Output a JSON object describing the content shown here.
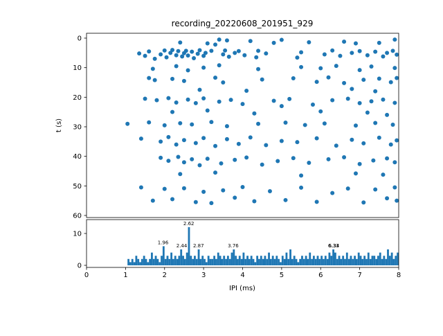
{
  "figure": {
    "title": "recording_20220608_201951_929",
    "background": "#ffffff",
    "accent": "#1f77b4"
  },
  "chart_data": [
    {
      "type": "scatter",
      "title": "recording_20220608_201951_929",
      "xlabel": "",
      "ylabel": "t (s)",
      "xlim": [
        0,
        8
      ],
      "ylim": [
        60,
        0
      ],
      "y_inverted": true,
      "xticks": [
        0,
        1,
        2,
        3,
        4,
        5,
        6,
        7,
        8
      ],
      "yticks": [
        0,
        10,
        20,
        30,
        40,
        50,
        60
      ],
      "marker_color": "#1f77b4",
      "grid": false,
      "legend": null,
      "points": [
        [
          3.4,
          0.5
        ],
        [
          3.6,
          0.8
        ],
        [
          4.2,
          1.0
        ],
        [
          5.0,
          0.6
        ],
        [
          6.6,
          1.2
        ],
        [
          7.9,
          0.5
        ],
        [
          2.4,
          1.5
        ],
        [
          3.1,
          1.8
        ],
        [
          3.3,
          2.2
        ],
        [
          4.8,
          1.6
        ],
        [
          5.7,
          1.4
        ],
        [
          6.9,
          1.8
        ],
        [
          7.5,
          1.6
        ],
        [
          1.35,
          5.2
        ],
        [
          1.5,
          6.0
        ],
        [
          1.6,
          4.5
        ],
        [
          1.75,
          7.0
        ],
        [
          1.9,
          5.5
        ],
        [
          2.0,
          4.2
        ],
        [
          2.05,
          6.5
        ],
        [
          2.15,
          5.0
        ],
        [
          2.2,
          4.0
        ],
        [
          2.3,
          5.8
        ],
        [
          2.35,
          4.4
        ],
        [
          2.45,
          6.2
        ],
        [
          2.5,
          5.1
        ],
        [
          2.55,
          4.3
        ],
        [
          2.6,
          5.9
        ],
        [
          2.7,
          4.6
        ],
        [
          2.75,
          6.8
        ],
        [
          2.85,
          5.3
        ],
        [
          2.9,
          4.1
        ],
        [
          3.0,
          6.0
        ],
        [
          3.05,
          5.0
        ],
        [
          3.2,
          4.3
        ],
        [
          3.5,
          5.5
        ],
        [
          3.55,
          4.2
        ],
        [
          3.65,
          6.3
        ],
        [
          3.8,
          5.0
        ],
        [
          3.9,
          4.4
        ],
        [
          4.05,
          5.8
        ],
        [
          4.35,
          6.5
        ],
        [
          4.4,
          4.3
        ],
        [
          4.6,
          5.2
        ],
        [
          5.4,
          6.6
        ],
        [
          5.5,
          4.8
        ],
        [
          6.1,
          5.5
        ],
        [
          6.3,
          4.2
        ],
        [
          6.5,
          6.0
        ],
        [
          6.8,
          5.0
        ],
        [
          7.0,
          4.4
        ],
        [
          7.2,
          5.8
        ],
        [
          7.4,
          4.6
        ],
        [
          7.6,
          6.2
        ],
        [
          7.7,
          5.0
        ],
        [
          7.85,
          4.3
        ],
        [
          7.95,
          5.6
        ],
        [
          1.7,
          10.4
        ],
        [
          2.3,
          9.5
        ],
        [
          2.6,
          10.9
        ],
        [
          3.0,
          10.0
        ],
        [
          3.4,
          9.2
        ],
        [
          4.4,
          10.5
        ],
        [
          5.5,
          9.8
        ],
        [
          6.0,
          10.2
        ],
        [
          6.4,
          9.4
        ],
        [
          7.0,
          10.8
        ],
        [
          7.3,
          9.6
        ],
        [
          7.9,
          10.1
        ],
        [
          1.6,
          13.5
        ],
        [
          1.75,
          14.2
        ],
        [
          2.2,
          13.8
        ],
        [
          2.5,
          14.5
        ],
        [
          3.3,
          13.4
        ],
        [
          3.5,
          15.0
        ],
        [
          4.5,
          14.0
        ],
        [
          5.3,
          13.6
        ],
        [
          5.9,
          14.8
        ],
        [
          6.2,
          13.3
        ],
        [
          6.6,
          15.2
        ],
        [
          7.1,
          14.1
        ],
        [
          7.5,
          13.7
        ],
        [
          7.8,
          14.9
        ],
        [
          7.95,
          13.5
        ],
        [
          2.9,
          17.5
        ],
        [
          4.1,
          17.8
        ],
        [
          6.8,
          17.2
        ],
        [
          7.4,
          18.0
        ],
        [
          1.5,
          20.5
        ],
        [
          1.8,
          21.0
        ],
        [
          2.1,
          20.3
        ],
        [
          2.3,
          21.8
        ],
        [
          2.6,
          20.8
        ],
        [
          2.8,
          22.0
        ],
        [
          3.0,
          20.4
        ],
        [
          3.4,
          21.5
        ],
        [
          3.7,
          20.9
        ],
        [
          4.0,
          22.3
        ],
        [
          4.8,
          21.2
        ],
        [
          5.2,
          20.6
        ],
        [
          5.8,
          22.5
        ],
        [
          6.3,
          21.0
        ],
        [
          6.7,
          20.5
        ],
        [
          7.0,
          22.0
        ],
        [
          7.3,
          21.4
        ],
        [
          7.6,
          20.8
        ],
        [
          7.9,
          21.9
        ],
        [
          5.0,
          23.0
        ],
        [
          2.2,
          25.0
        ],
        [
          3.1,
          24.5
        ],
        [
          4.3,
          25.5
        ],
        [
          6.0,
          24.8
        ],
        [
          7.2,
          25.2
        ],
        [
          7.7,
          26.0
        ],
        [
          1.05,
          29.0
        ],
        [
          1.6,
          28.5
        ],
        [
          2.0,
          29.5
        ],
        [
          2.4,
          28.8
        ],
        [
          2.7,
          29.2
        ],
        [
          3.2,
          28.4
        ],
        [
          3.6,
          29.8
        ],
        [
          4.4,
          29.0
        ],
        [
          5.1,
          28.6
        ],
        [
          5.6,
          29.4
        ],
        [
          6.1,
          28.9
        ],
        [
          6.9,
          29.6
        ],
        [
          7.4,
          28.7
        ],
        [
          7.85,
          29.3
        ],
        [
          1.4,
          34.0
        ],
        [
          1.9,
          35.0
        ],
        [
          2.1,
          33.5
        ],
        [
          2.3,
          36.0
        ],
        [
          2.5,
          34.5
        ],
        [
          2.8,
          35.5
        ],
        [
          3.0,
          33.8
        ],
        [
          3.3,
          36.5
        ],
        [
          3.6,
          34.2
        ],
        [
          3.9,
          35.8
        ],
        [
          4.2,
          33.6
        ],
        [
          4.6,
          36.2
        ],
        [
          5.0,
          34.8
        ],
        [
          5.4,
          35.2
        ],
        [
          5.9,
          33.9
        ],
        [
          6.4,
          36.4
        ],
        [
          6.8,
          34.4
        ],
        [
          7.1,
          35.6
        ],
        [
          7.5,
          33.7
        ],
        [
          7.8,
          36.0
        ],
        [
          7.95,
          34.6
        ],
        [
          1.9,
          40.5
        ],
        [
          2.1,
          41.5
        ],
        [
          2.35,
          40.2
        ],
        [
          2.5,
          42.0
        ],
        [
          2.7,
          41.0
        ],
        [
          2.9,
          43.0
        ],
        [
          3.1,
          40.8
        ],
        [
          3.45,
          42.4
        ],
        [
          3.8,
          41.2
        ],
        [
          4.1,
          40.4
        ],
        [
          4.5,
          42.8
        ],
        [
          4.9,
          41.6
        ],
        [
          5.3,
          40.6
        ],
        [
          5.7,
          42.2
        ],
        [
          6.2,
          41.0
        ],
        [
          6.6,
          40.3
        ],
        [
          7.0,
          42.6
        ],
        [
          7.35,
          41.4
        ],
        [
          7.7,
          40.7
        ],
        [
          7.9,
          42.0
        ],
        [
          2.4,
          46.0
        ],
        [
          3.3,
          45.5
        ],
        [
          5.5,
          46.5
        ],
        [
          6.9,
          45.8
        ],
        [
          7.6,
          46.2
        ],
        [
          1.4,
          50.5
        ],
        [
          1.7,
          55.0
        ],
        [
          2.0,
          51.0
        ],
        [
          2.2,
          54.5
        ],
        [
          2.5,
          50.8
        ],
        [
          2.8,
          55.5
        ],
        [
          3.0,
          52.0
        ],
        [
          3.2,
          55.8
        ],
        [
          3.5,
          51.5
        ],
        [
          3.8,
          54.0
        ],
        [
          4.0,
          50.4
        ],
        [
          4.3,
          55.2
        ],
        [
          4.7,
          51.8
        ],
        [
          5.1,
          54.8
        ],
        [
          5.5,
          50.6
        ],
        [
          5.9,
          55.4
        ],
        [
          6.3,
          52.4
        ],
        [
          6.7,
          50.9
        ],
        [
          7.1,
          55.6
        ],
        [
          7.4,
          51.2
        ],
        [
          7.7,
          54.2
        ],
        [
          7.9,
          50.5
        ],
        [
          7.95,
          55.0
        ]
      ]
    },
    {
      "type": "bar",
      "title": "",
      "xlabel": "IPI (ms)",
      "ylabel": "",
      "xlim": [
        0,
        8
      ],
      "ylim": [
        0,
        14
      ],
      "xticks": [
        0,
        1,
        2,
        3,
        4,
        5,
        6,
        7,
        8
      ],
      "yticks": [
        0,
        10
      ],
      "bar_color": "#1f77b4",
      "bin_start": 0,
      "bin_width": 0.05,
      "values": [
        0,
        0,
        0,
        0,
        0,
        0,
        0,
        0,
        0,
        0,
        0,
        0,
        0,
        0,
        0,
        0,
        0,
        0,
        0,
        0,
        0,
        2,
        1,
        2,
        1,
        3,
        2,
        1,
        2,
        3,
        2,
        1,
        2,
        4,
        2,
        3,
        2,
        1,
        3,
        6,
        2,
        3,
        2,
        4,
        2,
        3,
        2,
        3,
        5,
        3,
        2,
        4,
        12,
        3,
        2,
        3,
        2,
        5,
        2,
        3,
        2,
        1,
        3,
        2,
        2,
        3,
        2,
        4,
        3,
        2,
        3,
        2,
        3,
        2,
        4,
        5,
        3,
        2,
        3,
        2,
        4,
        2,
        3,
        2,
        3,
        2,
        1,
        3,
        2,
        3,
        2,
        3,
        2,
        4,
        2,
        3,
        2,
        3,
        2,
        1,
        3,
        2,
        4,
        2,
        5,
        2,
        3,
        2,
        1,
        2,
        3,
        2,
        3,
        2,
        4,
        2,
        3,
        2,
        3,
        2,
        3,
        2,
        3,
        2,
        4,
        3,
        5,
        4,
        2,
        3,
        2,
        3,
        2,
        4,
        2,
        3,
        2,
        3,
        2,
        4,
        3,
        2,
        3,
        2,
        4,
        2,
        3,
        3,
        2,
        3,
        4,
        2,
        3,
        2,
        5,
        3,
        4,
        2,
        3,
        4
      ],
      "annotations": [
        {
          "x": 1.96,
          "y": 6,
          "label": "1.96"
        },
        {
          "x": 2.62,
          "y": 12,
          "label": "2.62"
        },
        {
          "x": 2.44,
          "y": 5,
          "label": "2.44"
        },
        {
          "x": 2.87,
          "y": 5,
          "label": "2.87"
        },
        {
          "x": 3.76,
          "y": 5,
          "label": "3.76"
        },
        {
          "x": 6.33,
          "y": 5,
          "label": "6.33"
        },
        {
          "x": 6.34,
          "y": 5,
          "label": "6.34"
        }
      ]
    }
  ]
}
